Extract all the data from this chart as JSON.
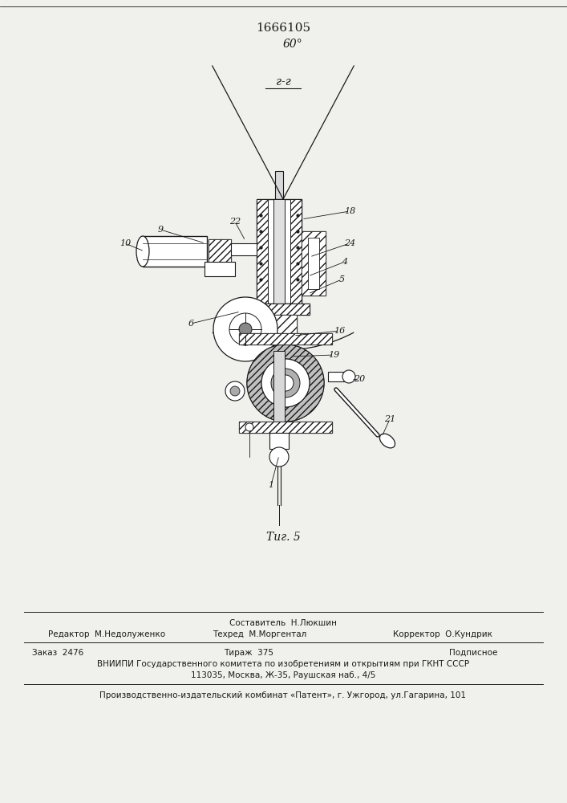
{
  "patent_number": "1666105",
  "fig_caption": "Τиг. 5",
  "section_label": "г-г",
  "angle_label": "60°",
  "bg_color": "#f0f0ec",
  "line_color": "#1a1a1a",
  "editor_line": "Редактор  М.Недолуженко",
  "composer_top": "Составитель  Н.Люкшин",
  "techred_line": "Техред  М.Моргентал",
  "corrector_line": "Корректор  О.Кундрик",
  "order_line": "Заказ  2476",
  "tirazh_line": "Тираж  375",
  "podpisnoe_line": "Подписное",
  "vniiipi_line": "ВНИИПИ Государственного комитета по изобретениям и открытиям при ГКНТ СССР",
  "address_line": "113035, Москва, Ж-35, Раушская наб., 4/5",
  "publisher_line": "Производственно-издательский комбинат «Патент», г. Ужгород, ул.Гагарина, 101"
}
